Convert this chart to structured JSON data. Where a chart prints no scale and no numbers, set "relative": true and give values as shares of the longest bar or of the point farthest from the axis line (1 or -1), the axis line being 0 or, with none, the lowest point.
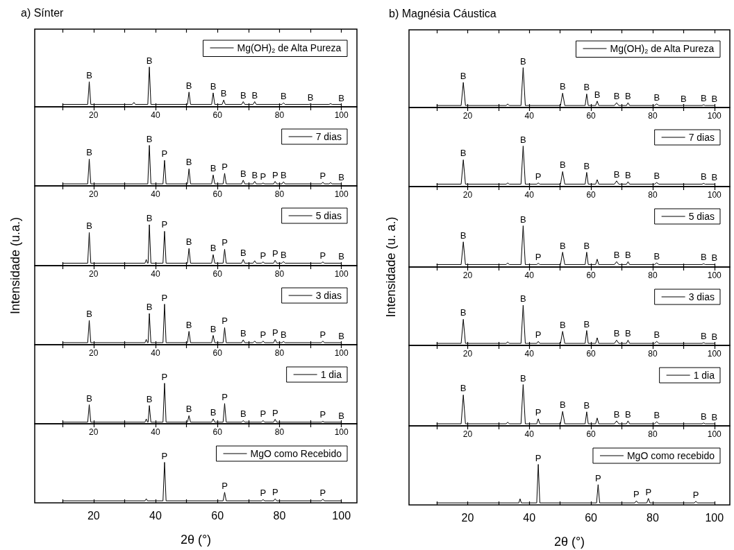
{
  "chart_data": [
    {
      "type": "line",
      "title": "a) Sínter",
      "relative": true,
      "legend": "top right",
      "xlim": [
        1,
        105
      ],
      "xticks": [
        {
          "value": 10,
          "label": null
        },
        20,
        {
          "value": 30,
          "label": null
        },
        40,
        {
          "value": 50,
          "label": null
        },
        60,
        {
          "value": 70,
          "label": null
        },
        80,
        {
          "value": 90,
          "label": null
        },
        100
      ],
      "x": [
        10,
        18.1,
        18.6,
        19.1,
        32.5,
        33,
        33.5,
        37.5,
        38,
        38.5,
        50.3,
        50.8,
        51.3,
        58.1,
        58.6,
        59.1,
        61.5,
        62,
        62.5,
        67.8,
        68.3,
        68.8,
        71.5,
        72,
        72.5,
        80.8,
        81.3,
        81.8,
        89.5,
        90,
        90.5,
        96,
        96.5,
        97,
        100
      ],
      "series": [
        {
          "name": "Mg(OH)$_{2}$ de Alta Pureza",
          "color": "#000000",
          "values": [
            0.06,
            0.06,
            0.63,
            0.06,
            0.06,
            0.11,
            0.06,
            0.06,
            1,
            0.06,
            0.06,
            0.37,
            0.06,
            0.06,
            0.35,
            0.06,
            0.06,
            0.17,
            0.06,
            0.06,
            0.13,
            0.06,
            0.06,
            0.13,
            0.06,
            0.06,
            0.1,
            0.06,
            0.06,
            0.07,
            0.06,
            0.06,
            0.08,
            0.06,
            0.06
          ]
        }
      ],
      "annotations": [
        {
          "text": "B",
          "x": 18.6,
          "y": 0.63
        },
        {
          "text": "B",
          "x": 38,
          "y": 1
        },
        {
          "text": "B",
          "x": 50.8,
          "y": 0.37
        },
        {
          "text": "B",
          "x": 58.6,
          "y": 0.35
        },
        {
          "text": "B",
          "x": 62,
          "y": 0.17
        },
        {
          "text": "B",
          "x": 68.3,
          "y": 0.13
        },
        {
          "text": "B",
          "x": 72,
          "y": 0.13
        },
        {
          "text": "B",
          "x": 81.3,
          "y": 0.1
        },
        {
          "text": "B",
          "x": 90,
          "y": 0.07
        },
        {
          "text": "B",
          "x": 100,
          "y": 0.06
        }
      ]
    },
    {
      "type": "line",
      "relative": true,
      "legend": "top right",
      "xlim": [
        1,
        105
      ],
      "xticks": [
        {
          "value": 10,
          "label": null
        },
        20,
        {
          "value": 30,
          "label": null
        },
        40,
        {
          "value": 50,
          "label": null
        },
        60,
        {
          "value": 70,
          "label": null
        },
        80,
        {
          "value": 90,
          "label": null
        },
        100
      ],
      "x": [
        10,
        18.1,
        18.6,
        19.1,
        37.5,
        38,
        38.5,
        42.4,
        42.9,
        43.4,
        50.3,
        50.8,
        51.3,
        58.1,
        58.6,
        59.1,
        61.8,
        62.3,
        62.8,
        67.8,
        68.3,
        68.8,
        71.5,
        72,
        72.5,
        74.2,
        74.7,
        75.2,
        78.1,
        78.6,
        79.1,
        80.8,
        81.3,
        81.8,
        93.5,
        94,
        94.5,
        96,
        96.5,
        97,
        100
      ],
      "series": [
        {
          "name": "7 dias",
          "color": "#000000",
          "values": [
            0.05,
            0.05,
            0.66,
            0.05,
            0.05,
            1,
            0.05,
            0.05,
            0.63,
            0.05,
            0.05,
            0.42,
            0.05,
            0.05,
            0.27,
            0.05,
            0.05,
            0.31,
            0.05,
            0.05,
            0.14,
            0.05,
            0.05,
            0.11,
            0.05,
            0.05,
            0.07,
            0.05,
            0.05,
            0.11,
            0.05,
            0.05,
            0.1,
            0.05,
            0.05,
            0.09,
            0.05,
            0.05,
            0.08,
            0.05,
            0.05
          ]
        }
      ],
      "annotations": [
        {
          "text": "B",
          "x": 18.6,
          "y": 0.66
        },
        {
          "text": "B",
          "x": 38,
          "y": 1
        },
        {
          "text": "P",
          "x": 42.9,
          "y": 0.63
        },
        {
          "text": "B",
          "x": 50.8,
          "y": 0.42
        },
        {
          "text": "B",
          "x": 58.6,
          "y": 0.27
        },
        {
          "text": "P",
          "x": 62.3,
          "y": 0.31
        },
        {
          "text": "B",
          "x": 68.3,
          "y": 0.14
        },
        {
          "text": "B",
          "x": 72,
          "y": 0.11
        },
        {
          "text": "P",
          "x": 74.7,
          "y": 0.07
        },
        {
          "text": "P",
          "x": 78.6,
          "y": 0.11
        },
        {
          "text": "B",
          "x": 81.3,
          "y": 0.1
        },
        {
          "text": "P",
          "x": 94,
          "y": 0.09
        },
        {
          "text": "B",
          "x": 100,
          "y": 0.05
        }
      ]
    },
    {
      "type": "line",
      "relative": true,
      "legend": "top right",
      "xlim": [
        1,
        105
      ],
      "xticks": [
        {
          "value": 10,
          "label": null
        },
        20,
        {
          "value": 30,
          "label": null
        },
        40,
        {
          "value": 50,
          "label": null
        },
        60,
        {
          "value": 70,
          "label": null
        },
        80,
        {
          "value": 90,
          "label": null
        },
        100
      ],
      "x": [
        10,
        18.1,
        18.6,
        19.1,
        36.6,
        37,
        37.4,
        37.6,
        38,
        38.5,
        42.4,
        42.9,
        43.4,
        50.3,
        50.8,
        51.3,
        58.1,
        58.6,
        59.1,
        61.8,
        62.3,
        62.8,
        67.8,
        68.3,
        68.8,
        71.5,
        72,
        72.5,
        74.2,
        74.7,
        75.2,
        78.1,
        78.6,
        79.1,
        80.8,
        81.3,
        81.8,
        93.5,
        94,
        94.5,
        100
      ],
      "series": [
        {
          "name": "5 dias",
          "color": "#000000",
          "values": [
            0.06,
            0.06,
            0.81,
            0.06,
            0.06,
            0.15,
            0.06,
            0.06,
            1,
            0.06,
            0.06,
            0.84,
            0.06,
            0.06,
            0.42,
            0.06,
            0.06,
            0.27,
            0.06,
            0.06,
            0.4,
            0.06,
            0.06,
            0.15,
            0.06,
            0.06,
            0.12,
            0.06,
            0.06,
            0.09,
            0.06,
            0.06,
            0.13,
            0.06,
            0.06,
            0.1,
            0.06,
            0.06,
            0.09,
            0.06,
            0.06
          ]
        }
      ],
      "annotations": [
        {
          "text": "B",
          "x": 18.6,
          "y": 0.81
        },
        {
          "text": "B",
          "x": 38,
          "y": 1
        },
        {
          "text": "P",
          "x": 42.9,
          "y": 0.84
        },
        {
          "text": "B",
          "x": 50.8,
          "y": 0.42
        },
        {
          "text": "B",
          "x": 58.6,
          "y": 0.27
        },
        {
          "text": "P",
          "x": 62.3,
          "y": 0.4
        },
        {
          "text": "B",
          "x": 68.3,
          "y": 0.15
        },
        {
          "text": "P",
          "x": 74.7,
          "y": 0.09
        },
        {
          "text": "P",
          "x": 78.6,
          "y": 0.13
        },
        {
          "text": "B",
          "x": 81.3,
          "y": 0.1
        },
        {
          "text": "P",
          "x": 94,
          "y": 0.09
        },
        {
          "text": "B",
          "x": 100,
          "y": 0.06
        }
      ]
    },
    {
      "type": "line",
      "ylabel": "Intensidade (u.a.)",
      "relative": true,
      "legend": "top right",
      "xlim": [
        1,
        105
      ],
      "xticks": [
        {
          "value": 10,
          "label": null
        },
        20,
        {
          "value": 30,
          "label": null
        },
        40,
        {
          "value": 50,
          "label": null
        },
        60,
        {
          "value": 70,
          "label": null
        },
        80,
        {
          "value": 90,
          "label": null
        },
        100
      ],
      "x": [
        10,
        18.1,
        18.6,
        19.1,
        36.6,
        37,
        37.4,
        37.6,
        38,
        38.5,
        42.4,
        42.9,
        43.4,
        50.3,
        50.8,
        51.3,
        58.1,
        58.6,
        59.1,
        61.8,
        62.3,
        62.8,
        67.8,
        68.3,
        68.8,
        71.5,
        72,
        72.5,
        74.2,
        74.7,
        75.2,
        78.1,
        78.6,
        79.1,
        80.8,
        81.3,
        81.8,
        93.5,
        94,
        94.5,
        100
      ],
      "series": [
        {
          "name": "3 dias",
          "color": "#000000",
          "values": [
            0.05,
            0.05,
            0.6,
            0.05,
            0.05,
            0.13,
            0.05,
            0.05,
            0.77,
            0.05,
            0.05,
            1,
            0.05,
            0.05,
            0.33,
            0.05,
            0.05,
            0.23,
            0.05,
            0.05,
            0.42,
            0.05,
            0.05,
            0.12,
            0.05,
            0.05,
            0.09,
            0.05,
            0.05,
            0.09,
            0.05,
            0.05,
            0.13,
            0.05,
            0.05,
            0.08,
            0.05,
            0.05,
            0.09,
            0.05,
            0.05
          ]
        }
      ],
      "annotations": [
        {
          "text": "B",
          "x": 18.6,
          "y": 0.6
        },
        {
          "text": "B",
          "x": 38,
          "y": 0.77
        },
        {
          "text": "P",
          "x": 42.9,
          "y": 1
        },
        {
          "text": "B",
          "x": 50.8,
          "y": 0.33
        },
        {
          "text": "B",
          "x": 58.6,
          "y": 0.23
        },
        {
          "text": "P",
          "x": 62.3,
          "y": 0.42
        },
        {
          "text": "B",
          "x": 68.3,
          "y": 0.12
        },
        {
          "text": "P",
          "x": 74.7,
          "y": 0.09
        },
        {
          "text": "P",
          "x": 78.6,
          "y": 0.13
        },
        {
          "text": "B",
          "x": 81.3,
          "y": 0.08
        },
        {
          "text": "P",
          "x": 94,
          "y": 0.09
        },
        {
          "text": "B",
          "x": 100,
          "y": 0.05
        }
      ]
    },
    {
      "type": "line",
      "relative": true,
      "legend": "top right",
      "xlim": [
        1,
        105
      ],
      "xticks": [
        {
          "value": 10,
          "label": null
        },
        20,
        {
          "value": 30,
          "label": null
        },
        40,
        {
          "value": 50,
          "label": null
        },
        60,
        {
          "value": 70,
          "label": null
        },
        80,
        {
          "value": 90,
          "label": null
        },
        100
      ],
      "x": [
        10,
        18.1,
        18.6,
        19.1,
        36.6,
        37,
        37.4,
        37.6,
        38,
        38.5,
        42.4,
        42.9,
        43.4,
        50.3,
        50.8,
        51.3,
        58.1,
        58.6,
        59.1,
        61.8,
        62.3,
        62.8,
        67.8,
        68.3,
        68.8,
        74.2,
        74.7,
        75.2,
        78.1,
        78.6,
        79.1,
        93.5,
        94,
        94.5,
        100
      ],
      "series": [
        {
          "name": "1 dia",
          "color": "#000000",
          "values": [
            0.04,
            0.04,
            0.47,
            0.04,
            0.04,
            0.12,
            0.04,
            0.04,
            0.45,
            0.04,
            0.04,
            1,
            0.04,
            0.04,
            0.2,
            0.04,
            0.04,
            0.12,
            0.04,
            0.04,
            0.5,
            0.04,
            0.04,
            0.08,
            0.04,
            0.04,
            0.08,
            0.04,
            0.04,
            0.11,
            0.04,
            0.04,
            0.06,
            0.04,
            0.04
          ]
        }
      ],
      "annotations": [
        {
          "text": "B",
          "x": 18.6,
          "y": 0.47
        },
        {
          "text": "B",
          "x": 38,
          "y": 0.45
        },
        {
          "text": "P",
          "x": 42.9,
          "y": 1
        },
        {
          "text": "B",
          "x": 50.8,
          "y": 0.2
        },
        {
          "text": "B",
          "x": 58.6,
          "y": 0.12
        },
        {
          "text": "P",
          "x": 62.3,
          "y": 0.5
        },
        {
          "text": "B",
          "x": 68.3,
          "y": 0.08
        },
        {
          "text": "P",
          "x": 74.7,
          "y": 0.08
        },
        {
          "text": "P",
          "x": 78.6,
          "y": 0.11
        },
        {
          "text": "P",
          "x": 94,
          "y": 0.06
        },
        {
          "text": "B",
          "x": 100,
          "y": 0.04
        }
      ]
    },
    {
      "type": "line",
      "xlabel": "2θ (°)",
      "relative": true,
      "legend": "top right",
      "xlim": [
        1,
        105
      ],
      "xticks": [
        {
          "value": 10,
          "label": null
        },
        20,
        {
          "value": 30,
          "label": null
        },
        40,
        {
          "value": 50,
          "label": null
        },
        60,
        {
          "value": 70,
          "label": null
        },
        80,
        {
          "value": 90,
          "label": null
        },
        100
      ],
      "x": [
        10,
        36.6,
        37,
        37.4,
        42.4,
        42.9,
        43.4,
        61.8,
        62.3,
        62.8,
        74.2,
        74.7,
        75.2,
        78.1,
        78.6,
        79.1,
        93.5,
        94,
        94.5,
        100
      ],
      "series": [
        {
          "name": "MgO como Recebido",
          "color": "#000000",
          "values": [
            0.05,
            0.05,
            0.1,
            0.05,
            0.05,
            1,
            0.05,
            0.05,
            0.26,
            0.05,
            0.05,
            0.08,
            0.05,
            0.05,
            0.1,
            0.05,
            0.05,
            0.09,
            0.05,
            0.05
          ]
        }
      ],
      "annotations": [
        {
          "text": "P",
          "x": 42.9,
          "y": 1
        },
        {
          "text": "P",
          "x": 62.3,
          "y": 0.26
        },
        {
          "text": "P",
          "x": 74.7,
          "y": 0.08
        },
        {
          "text": "P",
          "x": 78.6,
          "y": 0.1
        },
        {
          "text": "P",
          "x": 94,
          "y": 0.09
        }
      ]
    },
    {
      "type": "line",
      "title": "b) Magnésia Cáustica",
      "relative": true,
      "legend": "top right",
      "xlim": [
        1,
        105
      ],
      "xticks": [
        {
          "value": 10,
          "label": null
        },
        20,
        {
          "value": 30,
          "label": null
        },
        40,
        {
          "value": 50,
          "label": null
        },
        60,
        {
          "value": 70,
          "label": null
        },
        80,
        {
          "value": 90,
          "label": null
        },
        100
      ],
      "x": [
        10,
        17.9,
        18.6,
        19.3,
        32.5,
        33,
        33.5,
        37.3,
        38,
        38.7,
        50.1,
        50.8,
        51.5,
        58.1,
        58.6,
        59.1,
        61.5,
        62,
        62.5,
        67.6,
        68.3,
        69,
        71.5,
        72,
        72.5,
        80.6,
        81.3,
        82,
        89.5,
        90,
        90.5,
        96,
        96.5,
        97,
        100
      ],
      "series": [
        {
          "name": "Mg(OH)$_{2}$ de Alta Pureza",
          "color": "#000000",
          "values": [
            0.05,
            0.05,
            0.63,
            0.05,
            0.05,
            0.09,
            0.05,
            0.05,
            1,
            0.05,
            0.05,
            0.36,
            0.05,
            0.05,
            0.34,
            0.05,
            0.05,
            0.16,
            0.05,
            0.05,
            0.12,
            0.05,
            0.05,
            0.12,
            0.05,
            0.05,
            0.09,
            0.05,
            0.05,
            0.06,
            0.05,
            0.05,
            0.07,
            0.05,
            0.05
          ]
        }
      ],
      "annotations": [
        {
          "text": "B",
          "x": 18.6,
          "y": 0.63
        },
        {
          "text": "B",
          "x": 38,
          "y": 1
        },
        {
          "text": "B",
          "x": 50.8,
          "y": 0.36
        },
        {
          "text": "B",
          "x": 58.6,
          "y": 0.34
        },
        {
          "text": "B",
          "x": 62,
          "y": 0.16
        },
        {
          "text": "B",
          "x": 68.3,
          "y": 0.12
        },
        {
          "text": "B",
          "x": 72,
          "y": 0.12
        },
        {
          "text": "B",
          "x": 81.3,
          "y": 0.09
        },
        {
          "text": "B",
          "x": 90,
          "y": 0.06
        },
        {
          "text": "B",
          "x": 96.5,
          "y": 0.07
        },
        {
          "text": "B",
          "x": 100,
          "y": 0.05
        }
      ]
    },
    {
      "type": "line",
      "relative": true,
      "legend": "top right",
      "xlim": [
        1,
        105
      ],
      "xticks": [
        {
          "value": 10,
          "label": null
        },
        20,
        {
          "value": 30,
          "label": null
        },
        40,
        {
          "value": 50,
          "label": null
        },
        60,
        {
          "value": 70,
          "label": null
        },
        80,
        {
          "value": 90,
          "label": null
        },
        100
      ],
      "x": [
        10,
        17.9,
        18.6,
        19.3,
        32.5,
        33,
        33.5,
        37.3,
        38,
        38.7,
        42.4,
        42.9,
        43.4,
        50.1,
        50.8,
        51.5,
        58.1,
        58.6,
        59.1,
        61.5,
        62,
        62.5,
        67.6,
        68.3,
        69,
        71.5,
        72,
        72.5,
        80.6,
        81.3,
        82,
        96,
        96.5,
        97,
        100
      ],
      "series": [
        {
          "name": "7 dias",
          "color": "#000000",
          "values": [
            0.06,
            0.06,
            0.66,
            0.06,
            0.06,
            0.09,
            0.06,
            0.06,
            1,
            0.06,
            0.06,
            0.09,
            0.06,
            0.06,
            0.37,
            0.06,
            0.06,
            0.35,
            0.06,
            0.06,
            0.17,
            0.06,
            0.06,
            0.14,
            0.06,
            0.06,
            0.12,
            0.06,
            0.06,
            0.1,
            0.06,
            0.06,
            0.08,
            0.06,
            0.06
          ]
        }
      ],
      "annotations": [
        {
          "text": "B",
          "x": 18.6,
          "y": 0.66
        },
        {
          "text": "B",
          "x": 38,
          "y": 1
        },
        {
          "text": "P",
          "x": 42.9,
          "y": 0.09
        },
        {
          "text": "B",
          "x": 50.8,
          "y": 0.37
        },
        {
          "text": "B",
          "x": 58.6,
          "y": 0.35
        },
        {
          "text": "B",
          "x": 68.3,
          "y": 0.14
        },
        {
          "text": "B",
          "x": 72,
          "y": 0.12
        },
        {
          "text": "B",
          "x": 81.3,
          "y": 0.1
        },
        {
          "text": "B",
          "x": 96.5,
          "y": 0.08
        },
        {
          "text": "B",
          "x": 100,
          "y": 0.06
        }
      ]
    },
    {
      "type": "line",
      "relative": true,
      "legend": "top right",
      "xlim": [
        1,
        105
      ],
      "xticks": [
        {
          "value": 10,
          "label": null
        },
        20,
        {
          "value": 30,
          "label": null
        },
        40,
        {
          "value": 50,
          "label": null
        },
        60,
        {
          "value": 70,
          "label": null
        },
        80,
        {
          "value": 90,
          "label": null
        },
        100
      ],
      "x": [
        10,
        17.9,
        18.6,
        19.3,
        32.5,
        33,
        33.5,
        37.3,
        38,
        38.7,
        42.4,
        42.9,
        43.4,
        50.1,
        50.8,
        51.5,
        58.1,
        58.6,
        59.1,
        61.5,
        62,
        62.5,
        67.6,
        68.3,
        69,
        71.5,
        72,
        72.5,
        80.6,
        81.3,
        82,
        96,
        96.5,
        97,
        100
      ],
      "series": [
        {
          "name": "5 dias",
          "color": "#000000",
          "values": [
            0.06,
            0.06,
            0.61,
            0.06,
            0.06,
            0.1,
            0.06,
            0.06,
            1,
            0.06,
            0.06,
            0.09,
            0.06,
            0.06,
            0.36,
            0.06,
            0.06,
            0.36,
            0.06,
            0.06,
            0.19,
            0.06,
            0.06,
            0.13,
            0.06,
            0.06,
            0.13,
            0.06,
            0.06,
            0.1,
            0.06,
            0.06,
            0.08,
            0.06,
            0.06
          ]
        }
      ],
      "annotations": [
        {
          "text": "B",
          "x": 18.6,
          "y": 0.61
        },
        {
          "text": "B",
          "x": 38,
          "y": 1
        },
        {
          "text": "P",
          "x": 42.9,
          "y": 0.09
        },
        {
          "text": "B",
          "x": 50.8,
          "y": 0.36
        },
        {
          "text": "B",
          "x": 58.6,
          "y": 0.36
        },
        {
          "text": "B",
          "x": 68.3,
          "y": 0.13
        },
        {
          "text": "B",
          "x": 72,
          "y": 0.13
        },
        {
          "text": "B",
          "x": 81.3,
          "y": 0.1
        },
        {
          "text": "B",
          "x": 96.5,
          "y": 0.08
        },
        {
          "text": "B",
          "x": 100,
          "y": 0.06
        }
      ]
    },
    {
      "type": "line",
      "ylabel": "Intensidade (u. a.)",
      "relative": true,
      "legend": "top right",
      "xlim": [
        1,
        105
      ],
      "xticks": [
        {
          "value": 10,
          "label": null
        },
        20,
        {
          "value": 30,
          "label": null
        },
        40,
        {
          "value": 50,
          "label": null
        },
        60,
        {
          "value": 70,
          "label": null
        },
        80,
        {
          "value": 90,
          "label": null
        },
        100
      ],
      "x": [
        10,
        17.9,
        18.6,
        19.3,
        32.5,
        33,
        33.5,
        37.3,
        38,
        38.7,
        42.4,
        42.9,
        43.4,
        50.1,
        50.8,
        51.5,
        58.1,
        58.6,
        59.1,
        61.5,
        62,
        62.5,
        67.6,
        68.3,
        69,
        71.5,
        72,
        72.5,
        80.6,
        81.3,
        82,
        96,
        96.5,
        97,
        100
      ],
      "series": [
        {
          "name": "3 dias",
          "color": "#000000",
          "values": [
            0.05,
            0.05,
            0.65,
            0.05,
            0.05,
            0.09,
            0.05,
            0.05,
            1,
            0.05,
            0.05,
            0.1,
            0.05,
            0.05,
            0.35,
            0.05,
            0.05,
            0.37,
            0.05,
            0.05,
            0.19,
            0.05,
            0.05,
            0.13,
            0.05,
            0.05,
            0.13,
            0.05,
            0.05,
            0.1,
            0.05,
            0.05,
            0.07,
            0.05,
            0.05
          ]
        }
      ],
      "annotations": [
        {
          "text": "B",
          "x": 18.6,
          "y": 0.65
        },
        {
          "text": "B",
          "x": 38,
          "y": 1
        },
        {
          "text": "P",
          "x": 42.9,
          "y": 0.1
        },
        {
          "text": "B",
          "x": 50.8,
          "y": 0.35
        },
        {
          "text": "B",
          "x": 58.6,
          "y": 0.37
        },
        {
          "text": "B",
          "x": 68.3,
          "y": 0.13
        },
        {
          "text": "B",
          "x": 72,
          "y": 0.13
        },
        {
          "text": "B",
          "x": 81.3,
          "y": 0.1
        },
        {
          "text": "B",
          "x": 96.5,
          "y": 0.07
        },
        {
          "text": "B",
          "x": 100,
          "y": 0.05
        }
      ]
    },
    {
      "type": "line",
      "relative": true,
      "legend": "top right",
      "xlim": [
        1,
        105
      ],
      "xticks": [
        {
          "value": 10,
          "label": null
        },
        20,
        {
          "value": 30,
          "label": null
        },
        40,
        {
          "value": 50,
          "label": null
        },
        60,
        {
          "value": 70,
          "label": null
        },
        80,
        {
          "value": 90,
          "label": null
        },
        100
      ],
      "x": [
        10,
        17.9,
        18.6,
        19.3,
        32.5,
        33,
        33.5,
        37.3,
        38,
        38.7,
        42.4,
        42.9,
        43.4,
        50.1,
        50.8,
        51.5,
        58.1,
        58.6,
        59.1,
        61.5,
        62,
        62.5,
        67.6,
        68.3,
        69,
        71.5,
        72,
        72.5,
        80.6,
        81.3,
        82,
        96,
        96.5,
        97,
        100
      ],
      "series": [
        {
          "name": "1 dia",
          "color": "#000000",
          "values": [
            0.05,
            0.05,
            0.75,
            0.05,
            0.05,
            0.09,
            0.05,
            0.05,
            1,
            0.05,
            0.05,
            0.17,
            0.05,
            0.05,
            0.35,
            0.05,
            0.05,
            0.34,
            0.05,
            0.05,
            0.19,
            0.05,
            0.05,
            0.12,
            0.05,
            0.05,
            0.12,
            0.05,
            0.05,
            0.1,
            0.05,
            0.05,
            0.07,
            0.05,
            0.05
          ]
        }
      ],
      "annotations": [
        {
          "text": "B",
          "x": 18.6,
          "y": 0.75
        },
        {
          "text": "B",
          "x": 38,
          "y": 1
        },
        {
          "text": "P",
          "x": 42.9,
          "y": 0.17
        },
        {
          "text": "B",
          "x": 50.8,
          "y": 0.35
        },
        {
          "text": "B",
          "x": 58.6,
          "y": 0.34
        },
        {
          "text": "B",
          "x": 68.3,
          "y": 0.12
        },
        {
          "text": "B",
          "x": 72,
          "y": 0.12
        },
        {
          "text": "B",
          "x": 81.3,
          "y": 0.1
        },
        {
          "text": "B",
          "x": 96.5,
          "y": 0.07
        },
        {
          "text": "B",
          "x": 100,
          "y": 0.05
        }
      ]
    },
    {
      "type": "line",
      "xlabel": "2θ (°)",
      "relative": true,
      "legend": "top right",
      "xlim": [
        1,
        105
      ],
      "xticks": [
        {
          "value": 10,
          "label": null
        },
        20,
        {
          "value": 30,
          "label": null
        },
        40,
        {
          "value": 50,
          "label": null
        },
        60,
        {
          "value": 70,
          "label": null
        },
        80,
        {
          "value": 90,
          "label": null
        },
        100
      ],
      "x": [
        10,
        36.6,
        37,
        37.4,
        42.4,
        42.9,
        43.4,
        61.8,
        62.3,
        62.8,
        74.2,
        74.7,
        75.2,
        78.1,
        78.6,
        79.1,
        93.5,
        94,
        94.5,
        100
      ],
      "series": [
        {
          "name": "MgO como recebido",
          "color": "#000000",
          "values": [
            0.05,
            0.05,
            0.15,
            0.05,
            0.05,
            1,
            0.05,
            0.05,
            0.5,
            0.05,
            0.05,
            0.1,
            0.05,
            0.05,
            0.16,
            0.05,
            0.05,
            0.09,
            0.05,
            0.05
          ]
        }
      ],
      "annotations": [
        {
          "text": "P",
          "x": 42.9,
          "y": 1
        },
        {
          "text": "P",
          "x": 62.3,
          "y": 0.5
        },
        {
          "text": "P",
          "x": 74.7,
          "y": 0.1
        },
        {
          "text": "P",
          "x": 78.6,
          "y": 0.16
        },
        {
          "text": "P",
          "x": 94,
          "y": 0.09
        }
      ]
    }
  ]
}
